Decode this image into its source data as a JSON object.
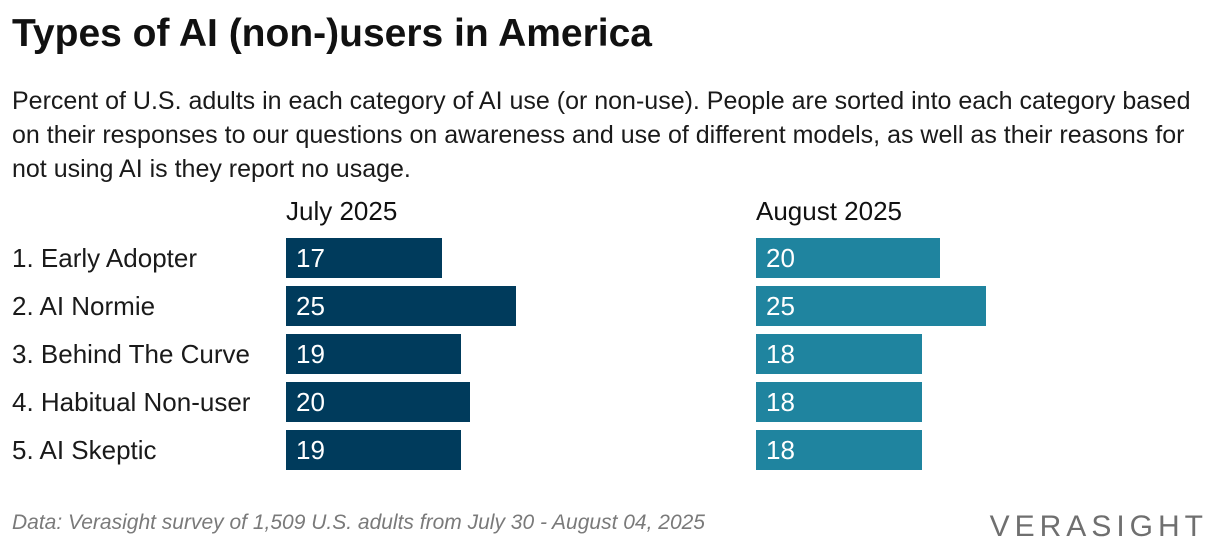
{
  "title": "Types of AI (non-)users in America",
  "subtitle": "Percent of U.S. adults in each category of AI use (or non-use). People are sorted into each category based on their responses to our questions on awareness and use of different models, as well as their reasons for not using AI is they report no usage.",
  "footnote": "Data: Verasight survey of 1,509 U.S. adults from July 30 - August 04, 2025",
  "logo": "VERASIGHT",
  "colors": {
    "july": "#003b5c",
    "august": "#1f849f"
  },
  "chart_data": {
    "type": "bar",
    "orientation": "horizontal",
    "categories": [
      "1. Early Adopter",
      "2. AI Normie",
      "3. Behind The Curve",
      "4. Habitual Non-user",
      "5. AI Skeptic"
    ],
    "series": [
      {
        "name": "July 2025",
        "values": [
          17,
          25,
          19,
          20,
          19
        ]
      },
      {
        "name": "August 2025",
        "values": [
          20,
          25,
          18,
          18,
          18
        ]
      }
    ],
    "xlim": [
      0,
      25
    ],
    "grid": false,
    "legend": "none"
  }
}
